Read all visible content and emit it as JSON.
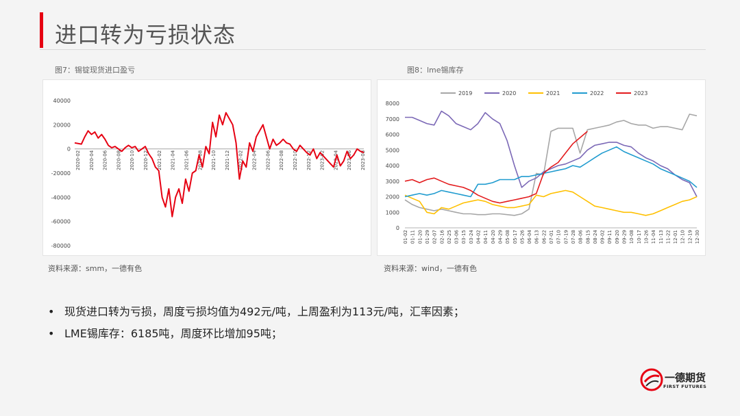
{
  "page": {
    "title": "进口转为亏损状态",
    "bullets": [
      "现货进口转为亏损，周度亏损均值为492元/吨，上周盈利为113元/吨，汇率因素；",
      "LME锡库存：6185吨，周度环比增加95吨；"
    ],
    "logo": {
      "name": "一德期货",
      "sub": "FIRST FUTURES"
    }
  },
  "fig7": {
    "caption": "图7：锡锭现货进口盈亏",
    "source": "资料来源：smm，一德有色"
  },
  "fig8": {
    "caption": "图8：lme锡库存",
    "source": "资料来源：wind，一德有色"
  },
  "chart_data": [
    {
      "type": "line",
      "title": "",
      "yticks": [
        "40000",
        "20000",
        "0",
        "-20000",
        "-40000",
        "-60000",
        "-80000"
      ],
      "ylim": [
        -80000,
        40000
      ],
      "xticks": [
        "2020-02",
        "2020-04",
        "2020-06",
        "2020-08",
        "2020-10",
        "2020-12",
        "2021-02",
        "2021-04",
        "2021-06",
        "2021-08",
        "2021-10",
        "2021-12",
        "2022-02",
        "2022-04",
        "2022-06",
        "2022-08",
        "2022-10",
        "2022-12",
        "2023-02",
        "2023-04",
        "2023-06",
        "2023-08"
      ],
      "grid": false,
      "series": [
        {
          "color": "#e60012",
          "x": [
            0,
            1,
            1.5,
            2,
            2.5,
            3,
            3.5,
            4,
            4.5,
            5,
            5.5,
            6,
            6.5,
            7,
            7.5,
            8,
            8.5,
            9,
            9.5,
            10,
            10.5,
            11,
            11.5,
            12,
            12.5,
            13,
            13.5,
            14,
            14.5,
            15,
            15.5,
            16,
            16.5,
            17,
            17.5,
            18,
            18.5,
            19,
            19.5,
            20,
            20.5,
            21,
            21.5,
            22,
            22.5,
            23,
            23.5,
            24,
            24.5,
            25,
            25.5,
            26,
            26.5,
            27,
            27.5,
            28,
            28.5,
            29,
            29.5,
            30,
            30.5,
            31,
            31.5,
            32,
            32.5,
            33,
            33.5,
            34,
            34.5,
            35,
            35.5,
            36,
            36.5,
            37,
            37.5,
            38,
            38.5,
            39,
            39.5,
            40,
            40.5,
            41,
            41.5,
            42,
            42.5,
            43
          ],
          "y": [
            5000,
            4000,
            10000,
            15000,
            12000,
            14000,
            9000,
            12000,
            8000,
            3000,
            1000,
            2000,
            0,
            -2000,
            1000,
            3000,
            1000,
            2000,
            -2000,
            0,
            2000,
            -4000,
            -8000,
            -15000,
            -18000,
            -40000,
            -48000,
            -33000,
            -56000,
            -40000,
            -33000,
            -45000,
            -25000,
            -35000,
            -20000,
            -18000,
            -5000,
            -15000,
            2000,
            -4000,
            22000,
            10000,
            28000,
            20000,
            30000,
            25000,
            20000,
            5000,
            -25000,
            -10000,
            -15000,
            5000,
            -2000,
            10000,
            15000,
            20000,
            10000,
            0,
            8000,
            3000,
            5000,
            8000,
            5000,
            4000,
            0,
            -2000,
            3000,
            0,
            -3000,
            -5000,
            0,
            -8000,
            -3000,
            -6000,
            -9000,
            -12000,
            -15000,
            -5000,
            -14000,
            -10000,
            -2000,
            -8000,
            -5000,
            0,
            -2000,
            -3000
          ]
        }
      ]
    },
    {
      "type": "line",
      "title": "",
      "yticks": [
        "8000",
        "7000",
        "6000",
        "5000",
        "4000",
        "3000",
        "2000",
        "1000",
        "0"
      ],
      "ylim": [
        0,
        8000
      ],
      "xticks": [
        "01-02",
        "01-11",
        "01-20",
        "01-29",
        "02-07",
        "02-16",
        "02-25",
        "03-06",
        "03-15",
        "03-24",
        "04-02",
        "04-11",
        "04-20",
        "04-29",
        "05-08",
        "05-17",
        "05-26",
        "06-04",
        "06-13",
        "06-22",
        "07-01",
        "07-10",
        "07-19",
        "07-28",
        "08-06",
        "08-15",
        "08-24",
        "09-02",
        "09-11",
        "09-20",
        "09-29",
        "10-08",
        "10-17",
        "10-26",
        "11-04",
        "11-13",
        "11-22",
        "12-01",
        "12-10",
        "12-19",
        "12-30"
      ],
      "grid": false,
      "legend": "top",
      "series": [
        {
          "name": "2019",
          "color": "#a6a6a6",
          "x": [
            0,
            1,
            2,
            3,
            4,
            5,
            6,
            7,
            8,
            9,
            10,
            11,
            12,
            13,
            14,
            15,
            16,
            17,
            18,
            19,
            20,
            21,
            22,
            23,
            24,
            25,
            26,
            27,
            28,
            29,
            30,
            31,
            32,
            33,
            34,
            35,
            36,
            37,
            38,
            39,
            40
          ],
          "y": [
            1800,
            1500,
            1300,
            1200,
            1100,
            1200,
            1100,
            1000,
            900,
            900,
            850,
            850,
            900,
            900,
            850,
            800,
            900,
            1200,
            3500,
            3400,
            6200,
            6400,
            6400,
            6400,
            4800,
            6300,
            6400,
            6500,
            6600,
            6800,
            6900,
            6700,
            6600,
            6600,
            6400,
            6500,
            6500,
            6400,
            6300,
            7300,
            7200
          ]
        },
        {
          "name": "2020",
          "color": "#7b68b6",
          "x": [
            0,
            1,
            2,
            3,
            4,
            5,
            6,
            7,
            8,
            9,
            10,
            11,
            12,
            13,
            14,
            15,
            16,
            17,
            18,
            19,
            20,
            21,
            22,
            23,
            24,
            25,
            26,
            27,
            28,
            29,
            30,
            31,
            32,
            33,
            34,
            35,
            36,
            37,
            38,
            39,
            40
          ],
          "y": [
            7100,
            7100,
            6900,
            6700,
            6600,
            7500,
            7200,
            6700,
            6500,
            6300,
            6700,
            7400,
            7000,
            6700,
            5600,
            4000,
            2600,
            3000,
            3200,
            3600,
            3800,
            4000,
            4100,
            4300,
            4500,
            5000,
            5300,
            5400,
            5500,
            5500,
            5300,
            5200,
            4800,
            4500,
            4300,
            4000,
            3800,
            3400,
            3100,
            2900,
            2000
          ]
        },
        {
          "name": "2021",
          "color": "#ffc000",
          "x": [
            0,
            1,
            2,
            3,
            4,
            5,
            6,
            7,
            8,
            9,
            10,
            11,
            12,
            13,
            14,
            15,
            16,
            17,
            18,
            19,
            20,
            21,
            22,
            23,
            24,
            25,
            26,
            27,
            28,
            29,
            30,
            31,
            32,
            33,
            34,
            35,
            36,
            37,
            38,
            39,
            40
          ],
          "y": [
            2100,
            1900,
            1700,
            1000,
            900,
            1300,
            1200,
            1400,
            1600,
            1700,
            1800,
            1700,
            1500,
            1400,
            1300,
            1300,
            1400,
            1500,
            2100,
            2000,
            2200,
            2300,
            2400,
            2300,
            2000,
            1700,
            1400,
            1300,
            1200,
            1100,
            1000,
            1000,
            900,
            800,
            900,
            1100,
            1300,
            1500,
            1700,
            1800,
            2000
          ]
        },
        {
          "name": "2022",
          "color": "#1f9bcf",
          "x": [
            0,
            1,
            2,
            3,
            4,
            5,
            6,
            7,
            8,
            9,
            10,
            11,
            12,
            13,
            14,
            15,
            16,
            17,
            18,
            19,
            20,
            21,
            22,
            23,
            24,
            25,
            26,
            27,
            28,
            29,
            30,
            31,
            32,
            33,
            34,
            35,
            36,
            37,
            38,
            39,
            40
          ],
          "y": [
            2000,
            2100,
            2200,
            2100,
            2200,
            2400,
            2300,
            2200,
            2100,
            2000,
            2800,
            2800,
            2900,
            3100,
            3100,
            3100,
            3300,
            3300,
            3400,
            3500,
            3600,
            3700,
            3800,
            4000,
            3900,
            4200,
            4500,
            4800,
            5000,
            5200,
            4900,
            4700,
            4500,
            4300,
            4100,
            3800,
            3600,
            3400,
            3200,
            3000,
            2600
          ]
        },
        {
          "name": "2023",
          "color": "#e31a1c",
          "x": [
            0,
            1,
            2,
            3,
            4,
            5,
            6,
            7,
            8,
            9,
            10,
            11,
            12,
            13,
            14,
            15,
            16,
            17,
            18,
            19,
            20,
            21,
            22,
            23,
            24,
            25
          ],
          "y": [
            3000,
            3100,
            2900,
            3100,
            3200,
            3000,
            2800,
            2700,
            2600,
            2400,
            2100,
            1900,
            1700,
            1600,
            1700,
            1800,
            1900,
            2000,
            2200,
            3500,
            3900,
            4200,
            4800,
            5400,
            5800,
            6200
          ]
        }
      ]
    }
  ]
}
